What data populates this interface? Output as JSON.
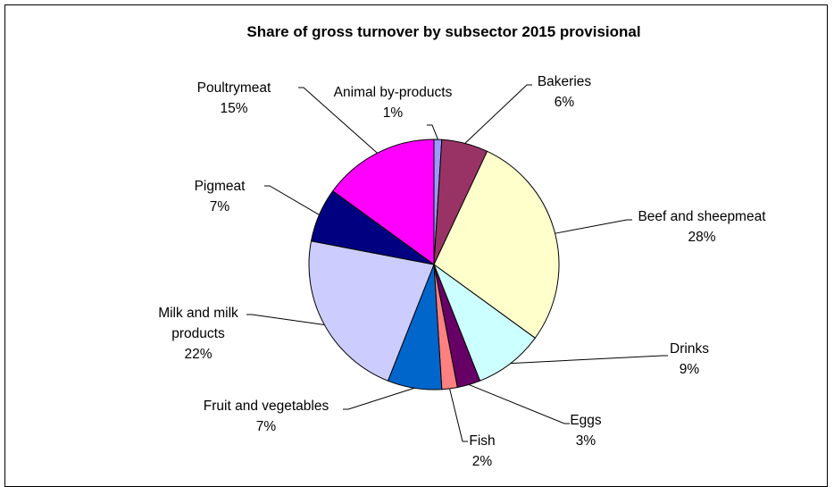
{
  "chart_data": {
    "type": "pie",
    "title": "Share of gross turnover by subsector 2015 provisional",
    "categories": [
      "Animal by-products",
      "Bakeries",
      "Beef and sheepmeat",
      "Drinks",
      "Eggs",
      "Fish",
      "Fruit and vegetables",
      "Milk and milk products",
      "Pigmeat",
      "Poultrymeat"
    ],
    "values": [
      1,
      6,
      28,
      9,
      3,
      2,
      7,
      22,
      7,
      15
    ],
    "value_labels": [
      "1%",
      "6%",
      "28%",
      "9%",
      "3%",
      "2%",
      "7%",
      "22%",
      "7%",
      "15%"
    ],
    "colors": [
      "#9999ff",
      "#993366",
      "#ffffcc",
      "#ccffff",
      "#660066",
      "#ff8080",
      "#0066cc",
      "#ccccff",
      "#000080",
      "#ff00ff"
    ]
  }
}
